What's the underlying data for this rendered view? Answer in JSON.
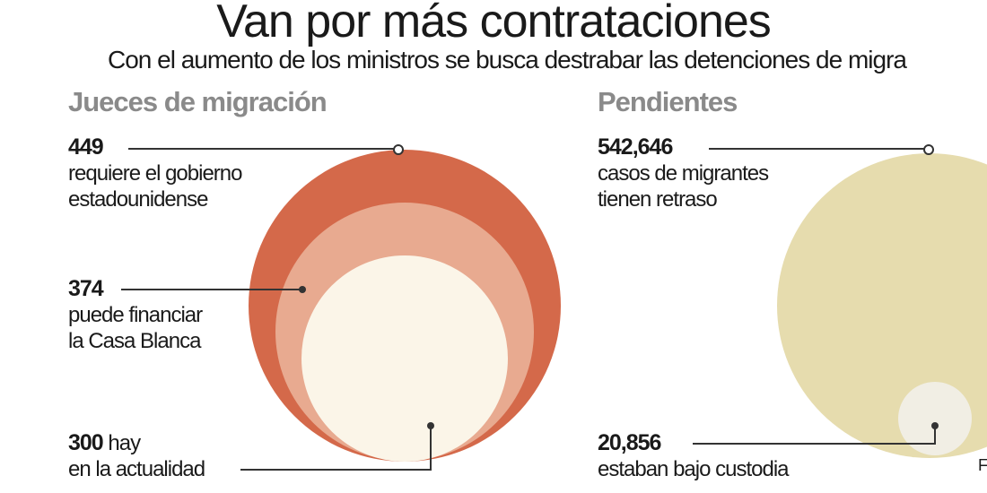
{
  "header": {
    "title": "Van por más contrataciones",
    "subtitle": "Con el aumento de los ministros se busca destrabar las detenciones de migra"
  },
  "colors": {
    "ring_outer": "#d4694a",
    "ring_mid": "#e8aa90",
    "ring_inner": "#fbf5e8",
    "pending_big": "#e6dcae",
    "pending_small": "#f1eee4",
    "line": "#333333"
  },
  "chart_data": [
    {
      "type": "bubble",
      "title": "Jueces de migración",
      "series": [
        {
          "name": "requiere el gobierno estadounidense",
          "value": 449,
          "value_label": "449",
          "label_lines": [
            "requiere el gobierno",
            "estadounidense"
          ]
        },
        {
          "name": "puede financiar la Casa Blanca",
          "value": 374,
          "value_label": "374",
          "label_lines": [
            "puede financiar",
            "la Casa Blanca"
          ]
        },
        {
          "name": "hay en la actualidad",
          "value": 300,
          "value_label": "300",
          "label_lines": [
            "hay",
            "en la actualidad"
          ]
        }
      ]
    },
    {
      "type": "bubble",
      "title": "Pendientes",
      "series": [
        {
          "name": "casos de migrantes tienen retraso",
          "value": 542646,
          "value_label": "542,646",
          "label_lines": [
            "casos de migrantes",
            "tienen retraso"
          ]
        },
        {
          "name": "estaban bajo custodia",
          "value": 20856,
          "value_label": "20,856",
          "label_lines": [
            "estaban bajo custodia"
          ]
        }
      ]
    }
  ],
  "footer": {
    "cut_letter": "F"
  }
}
